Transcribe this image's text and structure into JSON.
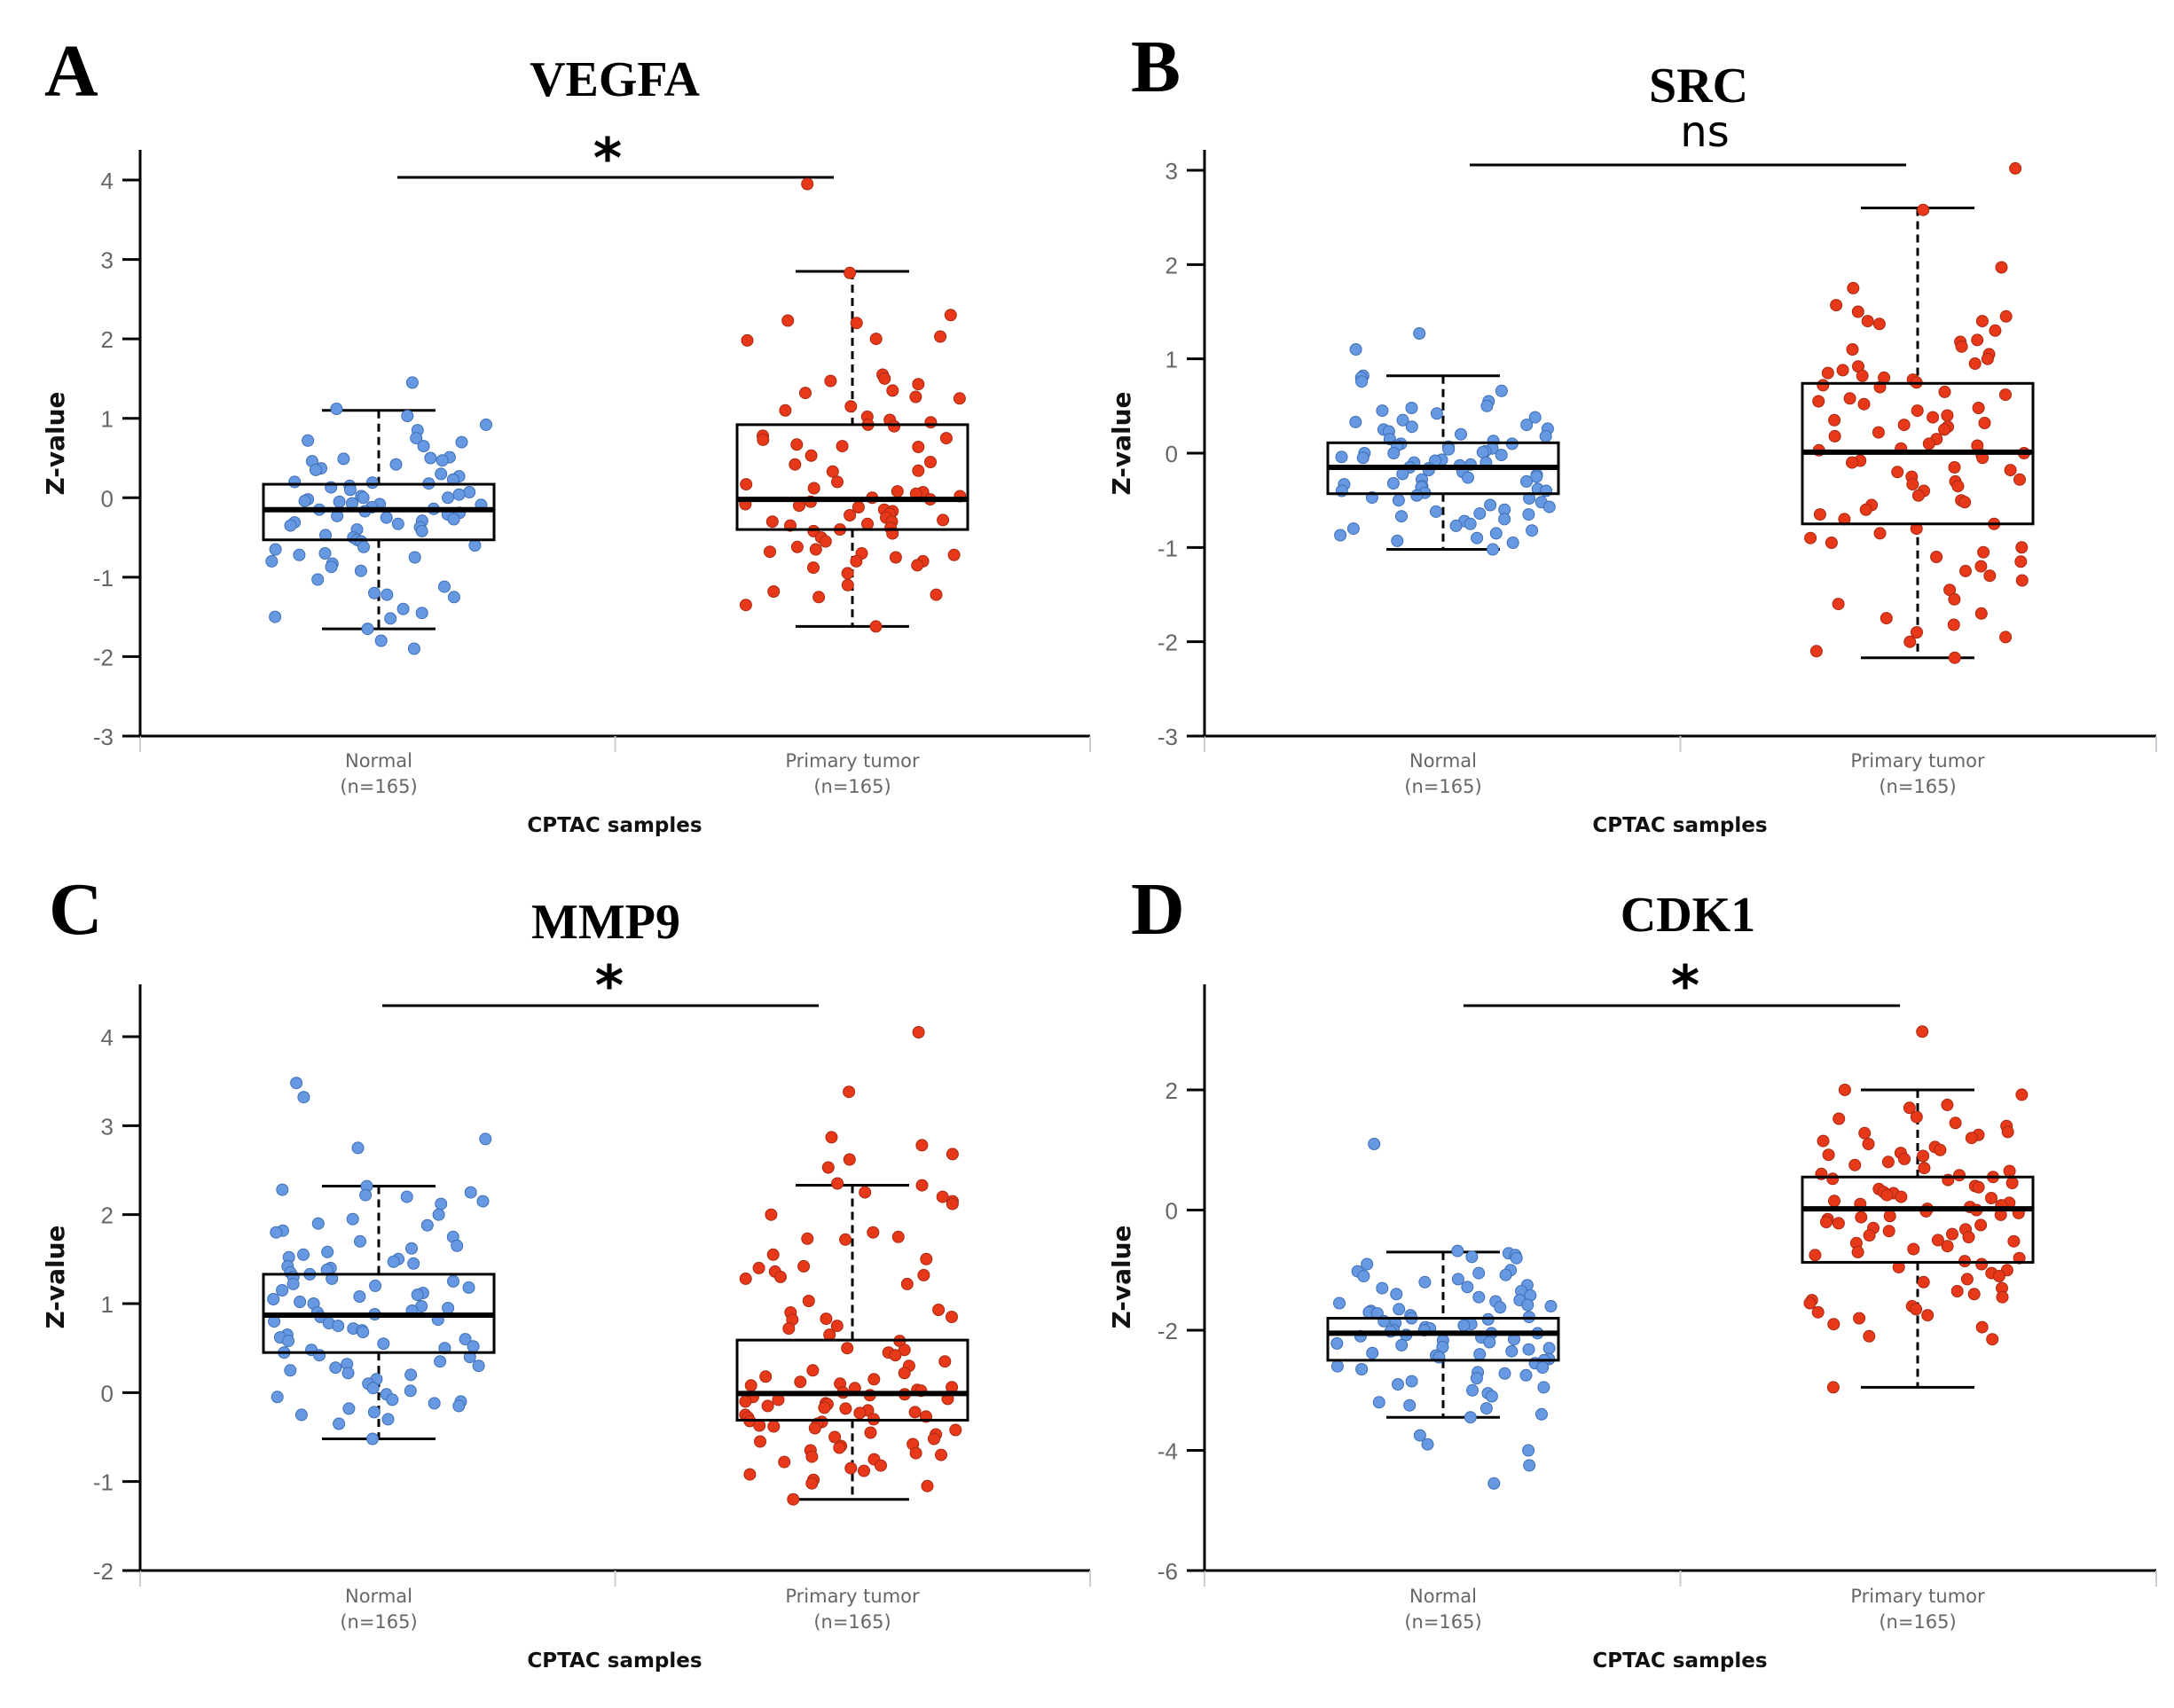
{
  "figure": {
    "colors": {
      "normal": "#6699E2",
      "normal_stroke": "#3F6FB5",
      "tumor": "#E8381A",
      "tumor_stroke": "#A82A12",
      "axis": "#000000",
      "tick_text": "#666666"
    }
  },
  "chart_data": [
    {
      "type": "scatter",
      "subtype": "boxplot-with-jitter",
      "panel": "A",
      "title": "VEGFA",
      "significance": "*",
      "xlabel": "CPTAC samples",
      "ylabel": "Z-value",
      "ylim": [
        -3,
        4.4
      ],
      "yticks": [
        -3,
        -2,
        -1,
        0,
        1,
        2,
        3,
        4
      ],
      "categories": [
        {
          "name": "Normal",
          "n_label": "(n=165)"
        },
        {
          "name": "Primary tumor",
          "n_label": "(n=165)"
        }
      ],
      "series": [
        {
          "name": "Normal",
          "box": {
            "whisker_low": -1.65,
            "q1": -0.53,
            "median": -0.15,
            "q3": 0.17,
            "whisker_high": 1.1
          },
          "points": [
            1.45,
            1.12,
            1.03,
            0.92,
            0.85,
            0.75,
            0.72,
            0.7,
            0.65,
            0.51,
            0.5,
            0.49,
            0.47,
            0.46,
            0.42,
            0.37,
            0.35,
            0.3,
            0.27,
            0.23,
            0.2,
            0.19,
            0.18,
            0.15,
            0.13,
            0.1,
            0.07,
            0.04,
            0.02,
            0.0,
            0.0,
            -0.02,
            -0.04,
            -0.05,
            -0.07,
            -0.08,
            -0.09,
            -0.12,
            -0.14,
            -0.15,
            -0.17,
            -0.19,
            -0.21,
            -0.23,
            -0.25,
            -0.27,
            -0.29,
            -0.31,
            -0.33,
            -0.35,
            -0.37,
            -0.4,
            -0.42,
            -0.47,
            -0.5,
            -0.53,
            -0.55,
            -0.6,
            -0.62,
            -0.65,
            -0.7,
            -0.72,
            -0.75,
            -0.8,
            -0.83,
            -0.87,
            -0.92,
            -1.03,
            -1.12,
            -1.2,
            -1.22,
            -1.25,
            -1.4,
            -1.45,
            -1.5,
            -1.52,
            -1.65,
            -1.8,
            -1.9
          ]
        },
        {
          "name": "Primary tumor",
          "box": {
            "whisker_low": -1.62,
            "q1": -0.4,
            "median": -0.02,
            "q3": 0.92,
            "whisker_high": 2.85
          },
          "points": [
            3.95,
            2.83,
            2.3,
            2.23,
            2.2,
            2.03,
            2.0,
            1.98,
            1.55,
            1.5,
            1.47,
            1.43,
            1.35,
            1.32,
            1.27,
            1.25,
            1.15,
            1.1,
            1.02,
            0.98,
            0.95,
            0.92,
            0.9,
            0.78,
            0.75,
            0.73,
            0.67,
            0.65,
            0.64,
            0.53,
            0.45,
            0.42,
            0.34,
            0.33,
            0.2,
            0.17,
            0.12,
            0.08,
            0.07,
            0.05,
            0.02,
            0.0,
            -0.02,
            -0.05,
            -0.08,
            -0.1,
            -0.12,
            -0.15,
            -0.17,
            -0.2,
            -0.22,
            -0.25,
            -0.28,
            -0.3,
            -0.3,
            -0.33,
            -0.35,
            -0.38,
            -0.4,
            -0.42,
            -0.45,
            -0.5,
            -0.55,
            -0.62,
            -0.65,
            -0.68,
            -0.7,
            -0.72,
            -0.75,
            -0.8,
            -0.8,
            -0.85,
            -0.88,
            -0.95,
            -1.1,
            -1.18,
            -1.22,
            -1.25,
            -1.35,
            -1.62
          ]
        }
      ]
    },
    {
      "type": "scatter",
      "subtype": "boxplot-with-jitter",
      "panel": "B",
      "title": "SRC",
      "significance": "ns",
      "xlabel": "CPTAC samples",
      "ylabel": "Z-value",
      "ylim": [
        -3,
        3.3
      ],
      "yticks": [
        -3,
        -2,
        -1,
        0,
        1,
        2,
        3
      ],
      "categories": [
        {
          "name": "Normal",
          "n_label": "(n=165)"
        },
        {
          "name": "Primary tumor",
          "n_label": "(n=165)"
        }
      ],
      "series": [
        {
          "name": "Normal",
          "box": {
            "whisker_low": -1.02,
            "q1": -0.43,
            "median": -0.15,
            "q3": 0.11,
            "whisker_high": 0.82
          },
          "points": [
            1.27,
            1.1,
            0.82,
            0.8,
            0.76,
            0.66,
            0.55,
            0.5,
            0.48,
            0.45,
            0.42,
            0.38,
            0.35,
            0.33,
            0.3,
            0.28,
            0.26,
            0.25,
            0.23,
            0.2,
            0.18,
            0.15,
            0.13,
            0.1,
            0.1,
            0.08,
            0.07,
            0.05,
            0.04,
            0.02,
            0.01,
            0.0,
            0.0,
            -0.02,
            -0.04,
            -0.05,
            -0.07,
            -0.08,
            -0.1,
            -0.1,
            -0.12,
            -0.13,
            -0.15,
            -0.16,
            -0.18,
            -0.2,
            -0.22,
            -0.23,
            -0.25,
            -0.26,
            -0.28,
            -0.3,
            -0.32,
            -0.33,
            -0.35,
            -0.36,
            -0.38,
            -0.4,
            -0.4,
            -0.42,
            -0.45,
            -0.47,
            -0.48,
            -0.5,
            -0.52,
            -0.55,
            -0.57,
            -0.6,
            -0.62,
            -0.64,
            -0.65,
            -0.67,
            -0.7,
            -0.72,
            -0.75,
            -0.77,
            -0.8,
            -0.82,
            -0.85,
            -0.87,
            -0.9,
            -0.93,
            -0.95,
            -1.02
          ]
        },
        {
          "name": "Primary tumor",
          "box": {
            "whisker_low": -2.17,
            "q1": -0.75,
            "median": 0.01,
            "q3": 0.74,
            "whisker_high": 2.6
          },
          "points": [
            3.02,
            2.58,
            1.97,
            1.75,
            1.57,
            1.5,
            1.45,
            1.4,
            1.4,
            1.37,
            1.3,
            1.2,
            1.18,
            1.13,
            1.1,
            1.05,
            1.0,
            0.95,
            0.92,
            0.88,
            0.85,
            0.82,
            0.8,
            0.78,
            0.75,
            0.72,
            0.7,
            0.65,
            0.62,
            0.58,
            0.55,
            0.52,
            0.48,
            0.45,
            0.4,
            0.38,
            0.35,
            0.32,
            0.3,
            0.28,
            0.25,
            0.22,
            0.18,
            0.15,
            0.1,
            0.08,
            0.05,
            0.03,
            0.0,
            -0.02,
            -0.05,
            -0.08,
            -0.1,
            -0.15,
            -0.18,
            -0.2,
            -0.25,
            -0.28,
            -0.3,
            -0.33,
            -0.35,
            -0.4,
            -0.45,
            -0.5,
            -0.52,
            -0.55,
            -0.6,
            -0.65,
            -0.7,
            -0.75,
            -0.8,
            -0.85,
            -0.9,
            -0.95,
            -1.0,
            -1.05,
            -1.1,
            -1.15,
            -1.2,
            -1.25,
            -1.3,
            -1.35,
            -1.45,
            -1.55,
            -1.6,
            -1.7,
            -1.75,
            -1.82,
            -1.9,
            -1.95,
            -2.0,
            -2.1,
            -2.17
          ]
        }
      ]
    },
    {
      "type": "scatter",
      "subtype": "boxplot-with-jitter",
      "panel": "C",
      "title": "MMP9",
      "significance": "*",
      "xlabel": "CPTAC samples",
      "ylabel": "Z-value",
      "ylim": [
        -2,
        4.6
      ],
      "yticks": [
        -2,
        -1,
        0,
        1,
        2,
        3,
        4
      ],
      "categories": [
        {
          "name": "Normal",
          "n_label": "(n=165)"
        },
        {
          "name": "Primary tumor",
          "n_label": "(n=165)"
        }
      ],
      "series": [
        {
          "name": "Normal",
          "box": {
            "whisker_low": -0.52,
            "q1": 0.45,
            "median": 0.87,
            "q3": 1.33,
            "whisker_high": 2.32
          },
          "points": [
            3.48,
            3.32,
            2.85,
            2.75,
            2.32,
            2.28,
            2.25,
            2.22,
            2.2,
            2.15,
            2.12,
            2.0,
            1.95,
            1.9,
            1.88,
            1.82,
            1.8,
            1.75,
            1.7,
            1.65,
            1.62,
            1.58,
            1.55,
            1.52,
            1.5,
            1.47,
            1.45,
            1.42,
            1.4,
            1.38,
            1.35,
            1.33,
            1.3,
            1.28,
            1.25,
            1.22,
            1.2,
            1.18,
            1.15,
            1.12,
            1.1,
            1.08,
            1.05,
            1.02,
            1.0,
            0.97,
            0.95,
            0.92,
            0.9,
            0.88,
            0.85,
            0.82,
            0.8,
            0.78,
            0.75,
            0.72,
            0.7,
            0.68,
            0.65,
            0.62,
            0.6,
            0.58,
            0.55,
            0.52,
            0.5,
            0.48,
            0.45,
            0.42,
            0.4,
            0.35,
            0.32,
            0.3,
            0.28,
            0.25,
            0.22,
            0.2,
            0.15,
            0.1,
            0.05,
            0.02,
            -0.02,
            -0.05,
            -0.08,
            -0.1,
            -0.12,
            -0.15,
            -0.18,
            -0.22,
            -0.25,
            -0.3,
            -0.35,
            -0.52
          ]
        },
        {
          "name": "Primary tumor",
          "box": {
            "whisker_low": -1.2,
            "q1": -0.31,
            "median": -0.01,
            "q3": 0.59,
            "whisker_high": 2.33
          },
          "points": [
            4.05,
            3.38,
            2.87,
            2.78,
            2.68,
            2.62,
            2.53,
            2.35,
            2.33,
            2.25,
            2.2,
            2.15,
            2.12,
            2.0,
            1.8,
            1.75,
            1.73,
            1.72,
            1.55,
            1.5,
            1.42,
            1.4,
            1.36,
            1.32,
            1.3,
            1.28,
            1.22,
            1.03,
            0.93,
            0.9,
            0.85,
            0.83,
            0.82,
            0.75,
            0.72,
            0.65,
            0.58,
            0.5,
            0.48,
            0.45,
            0.42,
            0.35,
            0.3,
            0.25,
            0.22,
            0.18,
            0.15,
            0.12,
            0.1,
            0.08,
            0.06,
            0.05,
            0.03,
            0.02,
            0.0,
            -0.02,
            -0.03,
            -0.05,
            -0.07,
            -0.08,
            -0.1,
            -0.12,
            -0.13,
            -0.15,
            -0.17,
            -0.18,
            -0.2,
            -0.22,
            -0.23,
            -0.25,
            -0.27,
            -0.28,
            -0.3,
            -0.32,
            -0.33,
            -0.35,
            -0.37,
            -0.38,
            -0.4,
            -0.42,
            -0.45,
            -0.47,
            -0.5,
            -0.52,
            -0.55,
            -0.58,
            -0.6,
            -0.62,
            -0.65,
            -0.68,
            -0.7,
            -0.72,
            -0.75,
            -0.78,
            -0.82,
            -0.85,
            -0.88,
            -0.92,
            -0.98,
            -1.02,
            -1.05,
            -1.2
          ]
        }
      ]
    },
    {
      "type": "scatter",
      "subtype": "boxplot-with-jitter",
      "panel": "D",
      "title": "CDK1",
      "significance": "*",
      "xlabel": "CPTAC samples",
      "ylabel": "Z-value",
      "ylim": [
        -6,
        3.7
      ],
      "yticks": [
        -6,
        -4,
        -2,
        0,
        2
      ],
      "categories": [
        {
          "name": "Normal",
          "n_label": "(n=165)"
        },
        {
          "name": "Primary tumor",
          "n_label": "(n=165)"
        }
      ],
      "series": [
        {
          "name": "Normal",
          "box": {
            "whisker_low": -3.45,
            "q1": -2.5,
            "median": -2.05,
            "q3": -1.8,
            "whisker_high": -0.7
          },
          "points": [
            1.1,
            -0.68,
            -0.72,
            -0.75,
            -0.78,
            -0.8,
            -0.9,
            -1.0,
            -1.02,
            -1.05,
            -1.08,
            -1.1,
            -1.15,
            -1.2,
            -1.25,
            -1.28,
            -1.3,
            -1.35,
            -1.4,
            -1.42,
            -1.45,
            -1.5,
            -1.52,
            -1.55,
            -1.58,
            -1.6,
            -1.62,
            -1.65,
            -1.68,
            -1.7,
            -1.72,
            -1.75,
            -1.78,
            -1.8,
            -1.82,
            -1.85,
            -1.88,
            -1.9,
            -1.92,
            -1.95,
            -1.97,
            -2.0,
            -2.0,
            -2.02,
            -2.05,
            -2.05,
            -2.08,
            -2.1,
            -2.12,
            -2.15,
            -2.17,
            -2.2,
            -2.22,
            -2.25,
            -2.28,
            -2.3,
            -2.32,
            -2.35,
            -2.38,
            -2.4,
            -2.42,
            -2.45,
            -2.48,
            -2.5,
            -2.55,
            -2.6,
            -2.62,
            -2.65,
            -2.7,
            -2.72,
            -2.75,
            -2.8,
            -2.85,
            -2.9,
            -2.95,
            -3.0,
            -3.05,
            -3.1,
            -3.2,
            -3.25,
            -3.3,
            -3.4,
            -3.45,
            -3.75,
            -3.9,
            -4.0,
            -4.25,
            -4.55
          ]
        },
        {
          "name": "Primary tumor",
          "box": {
            "whisker_low": -2.95,
            "q1": -0.87,
            "median": 0.02,
            "q3": 0.55,
            "whisker_high": 2.0
          },
          "points": [
            2.97,
            2.0,
            1.92,
            1.75,
            1.7,
            1.55,
            1.52,
            1.45,
            1.4,
            1.3,
            1.28,
            1.25,
            1.2,
            1.15,
            1.1,
            1.05,
            1.0,
            0.95,
            0.92,
            0.9,
            0.85,
            0.8,
            0.75,
            0.7,
            0.65,
            0.6,
            0.58,
            0.55,
            0.52,
            0.5,
            0.45,
            0.4,
            0.38,
            0.35,
            0.3,
            0.28,
            0.25,
            0.22,
            0.2,
            0.15,
            0.12,
            0.1,
            0.08,
            0.05,
            0.02,
            0.0,
            -0.02,
            -0.05,
            -0.08,
            -0.1,
            -0.12,
            -0.15,
            -0.2,
            -0.22,
            -0.25,
            -0.3,
            -0.32,
            -0.35,
            -0.4,
            -0.42,
            -0.45,
            -0.5,
            -0.52,
            -0.55,
            -0.6,
            -0.65,
            -0.7,
            -0.75,
            -0.8,
            -0.85,
            -0.9,
            -0.95,
            -1.0,
            -1.05,
            -1.1,
            -1.15,
            -1.2,
            -1.3,
            -1.35,
            -1.4,
            -1.45,
            -1.5,
            -1.55,
            -1.6,
            -1.65,
            -1.7,
            -1.75,
            -1.8,
            -1.9,
            -1.95,
            -2.1,
            -2.15,
            -2.95
          ]
        }
      ]
    }
  ]
}
